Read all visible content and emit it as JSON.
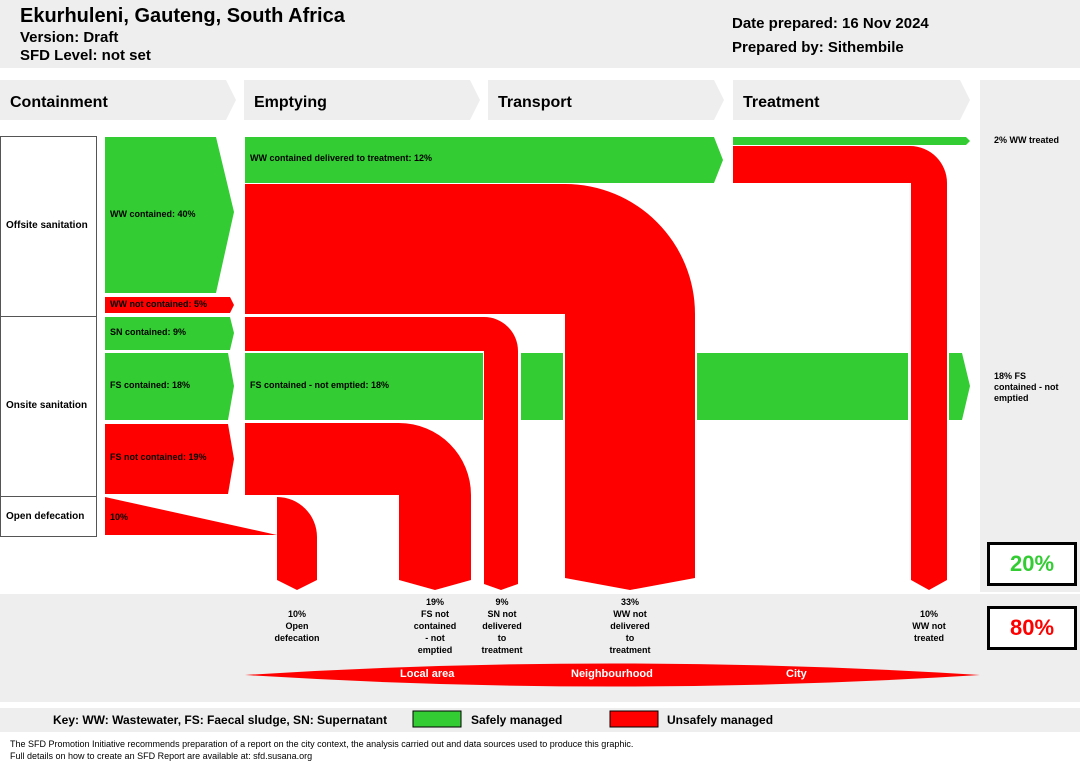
{
  "header": {
    "title": "Ekurhuleni, Gauteng, South Africa",
    "version": "Version: Draft",
    "sfd_level": "SFD Level: not set",
    "date": "Date prepared: 16 Nov 2024",
    "prepared_by": "Prepared by: Sithembile"
  },
  "stages": [
    "Containment",
    "Emptying",
    "Transport",
    "Treatment"
  ],
  "rows": {
    "offsite": "Offsite sanitation",
    "onsite": "Onsite sanitation",
    "open": "Open defecation"
  },
  "flows": {
    "ww_contained": "WW contained: 40%",
    "ww_not_contained": "WW not contained: 5%",
    "sn_contained": "SN contained: 9%",
    "fs_contained": "FS contained: 18%",
    "fs_not_contained": "FS not contained: 19%",
    "open_def": "10%",
    "ww_delivered": "WW contained delivered to treatment: 12%",
    "fs_not_emptied": "FS contained - not emptied: 18%"
  },
  "outcomes": {
    "open": [
      "10%",
      "Open",
      "defecation"
    ],
    "fs_not_contained": [
      "19%",
      "FS not",
      "contained",
      "- not",
      "emptied"
    ],
    "sn_not_delivered": [
      "9%",
      "SN not",
      "delivered",
      "to",
      "treatment"
    ],
    "ww_not_delivered": [
      "33%",
      "WW not",
      "delivered",
      "to",
      "treatment"
    ],
    "ww_not_treated": [
      "10%",
      "WW not",
      "treated"
    ]
  },
  "right_labels": {
    "ww_treated": "2% WW treated",
    "fs_not_emptied": [
      "18% FS",
      "contained - not",
      "emptied"
    ]
  },
  "totals": {
    "safe": "20%",
    "unsafe": "80%"
  },
  "areas": [
    "Local area",
    "Neighbourhood",
    "City"
  ],
  "key": {
    "text": "Key: WW: Wastewater, FS: Faecal sludge, SN: Supernatant",
    "safe": "Safely managed",
    "unsafe": "Unsafely managed"
  },
  "footer": {
    "line1": "The SFD Promotion Initiative recommends preparation of a report on the city context, the analysis carried out and data sources used to produce this graphic.",
    "line2": "Full details on how to create an SFD Report are available at: sfd.susana.org"
  },
  "colors": {
    "safe": "#33cc33",
    "unsafe": "#ff0000",
    "panel": "#eeeeee",
    "safe_text": "#33cc33",
    "unsafe_text": "#ff0000"
  }
}
